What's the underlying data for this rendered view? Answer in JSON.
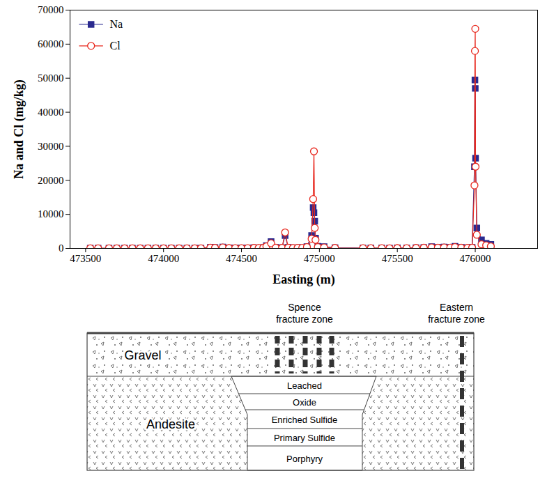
{
  "chart_data": {
    "type": "line",
    "xlabel": "Easting (m)",
    "ylabel": "Na and Cl (mg/kg)",
    "x": [
      473530,
      473580,
      473650,
      473700,
      473750,
      473800,
      473850,
      473900,
      473950,
      474000,
      474050,
      474100,
      474150,
      474200,
      474240,
      474300,
      474330,
      474380,
      474420,
      474460,
      474500,
      474540,
      474580,
      474610,
      474640,
      474660,
      474690,
      474720,
      474760,
      474780,
      474800,
      474830,
      474860,
      474890,
      474920,
      474950,
      474960,
      474965,
      474970,
      474975,
      474990,
      475030,
      475100,
      475280,
      475330,
      475400,
      475450,
      475500,
      475560,
      475620,
      475670,
      475720,
      475760,
      475800,
      475840,
      475870,
      475910,
      475950,
      475980,
      475995,
      475998,
      476000,
      476002,
      476010,
      476040,
      476070,
      476100
    ],
    "series": [
      {
        "name": "Na",
        "color": "#2a2a8f",
        "marker": "square-filled",
        "values": [
          50,
          40,
          50,
          40,
          50,
          40,
          60,
          50,
          40,
          50,
          40,
          60,
          50,
          40,
          60,
          300,
          250,
          400,
          150,
          100,
          80,
          120,
          200,
          150,
          250,
          800,
          2000,
          300,
          200,
          3800,
          300,
          150,
          200,
          250,
          500,
          3800,
          12000,
          10500,
          8000,
          3000,
          600,
          500,
          200,
          100,
          80,
          100,
          60,
          150,
          100,
          200,
          250,
          500,
          300,
          400,
          300,
          600,
          300,
          200,
          300,
          24000,
          49500,
          47000,
          26500,
          6000,
          2500,
          1500,
          1200
        ]
      },
      {
        "name": "Cl",
        "color": "#e8281e",
        "marker": "circle-open",
        "values": [
          30,
          30,
          40,
          30,
          30,
          30,
          40,
          30,
          30,
          40,
          30,
          40,
          30,
          30,
          40,
          200,
          150,
          300,
          100,
          80,
          60,
          90,
          150,
          100,
          200,
          600,
          1500,
          200,
          150,
          4700,
          200,
          100,
          150,
          180,
          400,
          2800,
          14500,
          28500,
          6000,
          2500,
          400,
          300,
          150,
          80,
          60,
          80,
          40,
          100,
          80,
          150,
          200,
          300,
          200,
          300,
          250,
          400,
          200,
          150,
          200,
          18500,
          58000,
          64500,
          24000,
          4000,
          1200,
          900,
          600
        ]
      }
    ],
    "xlim": [
      473400,
      476400
    ],
    "xticks": [
      473500,
      474000,
      474500,
      475000,
      475500,
      476000
    ],
    "ylim": [
      0,
      70000
    ],
    "yticks": [
      0,
      10000,
      20000,
      30000,
      40000,
      50000,
      60000,
      70000
    ],
    "legend": "top-left",
    "grid": false
  },
  "diagram": {
    "fracture_zones": [
      "Spence fracture zone",
      "Eastern fracture zone"
    ],
    "cover": "Gravel",
    "host_rock": "Andesite",
    "deposit_layers": [
      "Leached",
      "Oxide",
      "Enriched Sulfide",
      "Primary Sulfide",
      "Porphyry"
    ]
  }
}
